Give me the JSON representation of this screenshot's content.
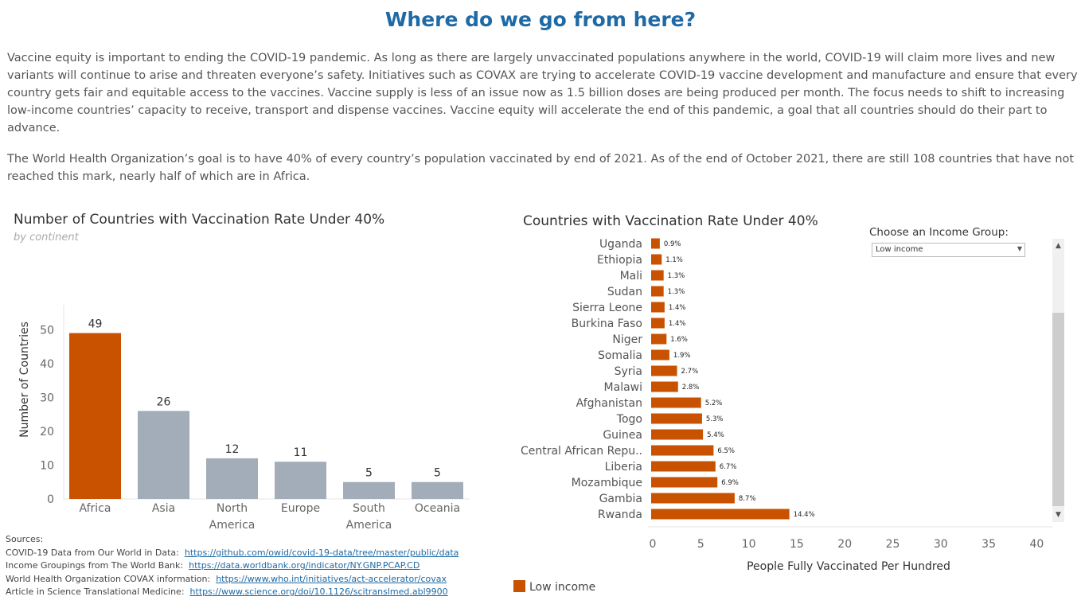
{
  "title": "Where do we go from here?",
  "paragraphs": [
    "Vaccine equity is important to ending the COVID-19 pandemic. As long as there are largely unvaccinated populations anywhere in the world, COVID-19 will claim more lives and new variants will continue to arise and threaten everyone’s safety. Initiatives such as COVAX are trying to accelerate COVID-19 vaccine development and manufacture and ensure that every country gets fair and equitable access to the vaccines. Vaccine supply is less of an issue now as 1.5 billion doses are being produced per month. The focus needs to shift to increasing low-income countries’ capacity to receive, transport and dispense vaccines. Vaccine equity will accelerate the end of this pandemic, a goal that all countries should do their part to advance.",
    "The World Health Organization’s goal is to have 40% of every country’s population vaccinated by end of 2021. As of the end of October 2021, there are still 108 countries that have not reached this mark, nearly half of which are in Africa."
  ],
  "filter": {
    "label": "Choose an Income Group:",
    "value": "Low income"
  },
  "legend": {
    "label": "Low income",
    "color": "#c85200"
  },
  "sources": {
    "heading": "Sources:",
    "items": [
      {
        "label": "COVID-19 Data from Our World in Data:",
        "link": "https://github.com/owid/covid-19-data/tree/master/public/data"
      },
      {
        "label": "Income Groupings from The World Bank:",
        "link": "https://data.worldbank.org/indicator/NY.GNP.PCAP.CD"
      },
      {
        "label": "World Health Organization COVAX information:",
        "link": "https://www.who.int/initiatives/act-accelerator/covax"
      },
      {
        "label": "Article in Science Translational Medicine:",
        "link": "https://www.science.org/doi/10.1126/scitranslmed.abl9900"
      }
    ]
  },
  "chart_data": [
    {
      "type": "bar",
      "title": "Number of Countries with Vaccination Rate Under 40%",
      "subtitle": "by continent",
      "ylabel": "Number of Countries",
      "xlabel": "",
      "ylim": [
        0,
        55
      ],
      "yticks": [
        0,
        10,
        20,
        30,
        40,
        50
      ],
      "categories": [
        "Africa",
        "Asia",
        "North America",
        "Europe",
        "South America",
        "Oceania"
      ],
      "category_lines": [
        [
          "Africa"
        ],
        [
          "Asia"
        ],
        [
          "North",
          "America"
        ],
        [
          "Europe"
        ],
        [
          "South",
          "America"
        ],
        [
          "Oceania"
        ]
      ],
      "values": [
        49,
        26,
        12,
        11,
        5,
        5
      ],
      "colors": [
        "#c85200",
        "#a3acb9",
        "#a3acb9",
        "#a3acb9",
        "#a3acb9",
        "#a3acb9"
      ],
      "grid": false
    },
    {
      "type": "bar",
      "orientation": "horizontal",
      "title": "Countries with Vaccination Rate Under 40%",
      "xlabel": "People Fully Vaccinated Per Hundred",
      "xlim": [
        0,
        40
      ],
      "xticks": [
        0,
        5,
        10,
        15,
        20,
        25,
        30,
        35,
        40
      ],
      "categories": [
        "Uganda",
        "Ethiopia",
        "Mali",
        "Sudan",
        "Sierra Leone",
        "Burkina Faso",
        "Niger",
        "Somalia",
        "Syria",
        "Malawi",
        "Afghanistan",
        "Togo",
        "Guinea",
        "Central African Repu..",
        "Liberia",
        "Mozambique",
        "Gambia",
        "Rwanda"
      ],
      "values": [
        0.9,
        1.1,
        1.3,
        1.3,
        1.4,
        1.4,
        1.6,
        1.9,
        2.7,
        2.8,
        5.2,
        5.3,
        5.4,
        6.5,
        6.7,
        6.9,
        8.7,
        14.4
      ],
      "labels": [
        "0.9%",
        "1.1%",
        "1.3%",
        "1.3%",
        "1.4%",
        "1.4%",
        "1.6%",
        "1.9%",
        "2.7%",
        "2.8%",
        "5.2%",
        "5.3%",
        "5.4%",
        "6.5%",
        "6.7%",
        "6.9%",
        "8.7%",
        "14.4%"
      ],
      "series": [
        {
          "name": "Low income",
          "color": "#c85200"
        }
      ],
      "grid": false
    }
  ]
}
